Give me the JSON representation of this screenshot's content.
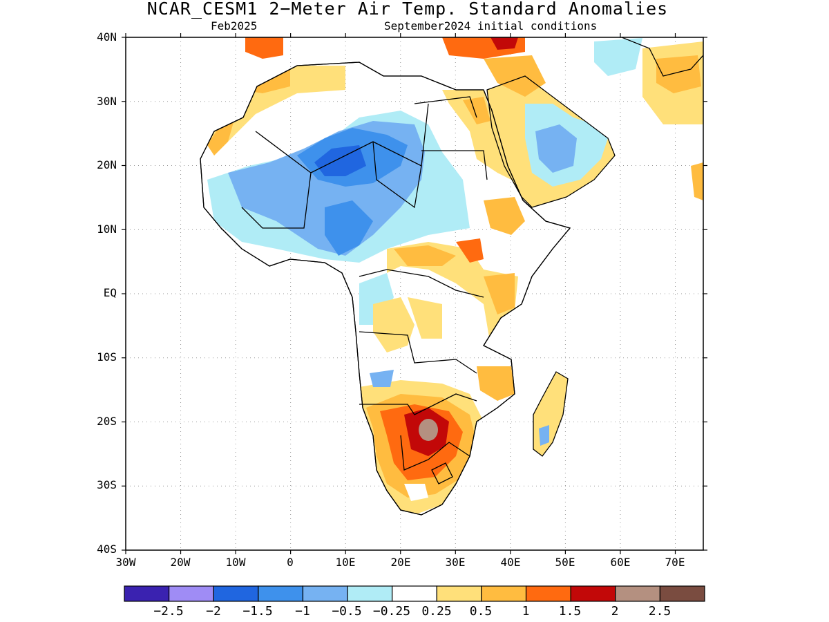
{
  "title": "NCAR_CESM1 2−Meter Air Temp. Standard Anomalies",
  "subtitle_left": "Feb2025",
  "subtitle_right": "September2024 initial conditions",
  "lat_labels": [
    "40N",
    "30N",
    "20N",
    "10N",
    "EQ",
    "10S",
    "20S",
    "30S",
    "40S"
  ],
  "lon_labels": [
    "30W",
    "20W",
    "10W",
    "0",
    "10E",
    "20E",
    "30E",
    "40E",
    "50E",
    "60E",
    "70E"
  ],
  "colorbar": {
    "colors": [
      "#3a22b0",
      "#9f8cf5",
      "#2066e0",
      "#3e91ec",
      "#76b2f2",
      "#b0ecf6",
      "#ffffff",
      "#ffe07a",
      "#ffbc40",
      "#ff6a10",
      "#c20808",
      "#b49080",
      "#7a4c40"
    ],
    "labels": [
      "−2.5",
      "−2",
      "−1.5",
      "−1",
      "−0.5",
      "−0.25",
      "0.25",
      "0.5",
      "1",
      "1.5",
      "2",
      "2.5"
    ]
  }
}
